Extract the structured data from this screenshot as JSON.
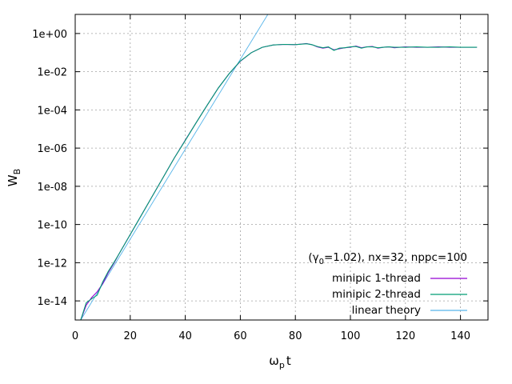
{
  "chart_data": {
    "type": "line",
    "xlabel": {
      "main": "ω",
      "sub": "p",
      "tail": "t"
    },
    "ylabel": {
      "main": "W",
      "sub": "B"
    },
    "xlim": [
      0,
      150
    ],
    "ylim": [
      1e-15,
      10
    ],
    "yscale": "log",
    "grid": true,
    "legend_position": "bottom-right",
    "x_ticks": [
      0,
      20,
      40,
      60,
      80,
      100,
      120,
      140
    ],
    "x_tick_labels": [
      "0",
      "20",
      "40",
      "60",
      "80",
      "100",
      "120",
      "140"
    ],
    "y_ticks": [
      1e-14,
      1e-12,
      1e-10,
      1e-08,
      1e-06,
      0.0001,
      0.01,
      1
    ],
    "y_tick_labels": [
      "1e-14",
      "1e-12",
      "1e-10",
      "1e-08",
      "1e-06",
      "1e-04",
      "1e-02",
      "1e+00"
    ],
    "annotation": {
      "pre": "(γ",
      "sub": "0",
      "post": "=1.02), nx=32, nppc=100"
    },
    "series": [
      {
        "name": "minipic 1-thread",
        "color": "#9400d3",
        "x": [
          2,
          4,
          6,
          8,
          10,
          12,
          14,
          16,
          20,
          24,
          28,
          32,
          36,
          40,
          44,
          48,
          52,
          56,
          60,
          64,
          68,
          72,
          76,
          80,
          84,
          86,
          88,
          90,
          92,
          94,
          96,
          98,
          100,
          102,
          104,
          106,
          108,
          110,
          112,
          114,
          116,
          118,
          120,
          124,
          128,
          132,
          136,
          140,
          144,
          146
        ],
        "y": [
          1e-15,
          6e-15,
          1.5e-14,
          3e-14,
          8e-14,
          3e-13,
          9e-13,
          3e-12,
          3e-11,
          3e-10,
          3e-09,
          3e-08,
          3e-07,
          2.6e-06,
          2.2e-05,
          0.00018,
          0.0014,
          0.008,
          0.035,
          0.1,
          0.19,
          0.25,
          0.27,
          0.26,
          0.3,
          0.26,
          0.2,
          0.17,
          0.19,
          0.14,
          0.16,
          0.18,
          0.19,
          0.22,
          0.18,
          0.2,
          0.21,
          0.17,
          0.19,
          0.2,
          0.18,
          0.19,
          0.2,
          0.19,
          0.19,
          0.2,
          0.19,
          0.19,
          0.19,
          0.19
        ]
      },
      {
        "name": "minipic 2-thread",
        "color": "#009e73",
        "x": [
          2,
          4,
          6,
          8,
          10,
          12,
          14,
          16,
          20,
          24,
          28,
          32,
          36,
          40,
          44,
          48,
          52,
          56,
          60,
          64,
          68,
          72,
          76,
          80,
          84,
          86,
          88,
          90,
          92,
          94,
          96,
          98,
          100,
          102,
          104,
          106,
          108,
          110,
          112,
          114,
          116,
          118,
          120,
          124,
          128,
          132,
          136,
          140,
          144,
          146
        ],
        "y": [
          1e-15,
          8e-15,
          1.3e-14,
          2e-14,
          1e-13,
          3.5e-13,
          1e-12,
          3e-12,
          3e-11,
          3e-10,
          3e-09,
          3e-08,
          3e-07,
          2.5e-06,
          2.2e-05,
          0.00018,
          0.0014,
          0.008,
          0.036,
          0.1,
          0.19,
          0.25,
          0.27,
          0.26,
          0.29,
          0.26,
          0.21,
          0.18,
          0.2,
          0.13,
          0.17,
          0.18,
          0.2,
          0.21,
          0.17,
          0.2,
          0.2,
          0.18,
          0.19,
          0.2,
          0.19,
          0.19,
          0.19,
          0.2,
          0.19,
          0.19,
          0.2,
          0.19,
          0.19,
          0.19
        ]
      },
      {
        "name": "linear theory",
        "color": "#56b4e9",
        "x": [
          2,
          70
        ],
        "y": [
          1e-15,
          10
        ]
      }
    ]
  }
}
